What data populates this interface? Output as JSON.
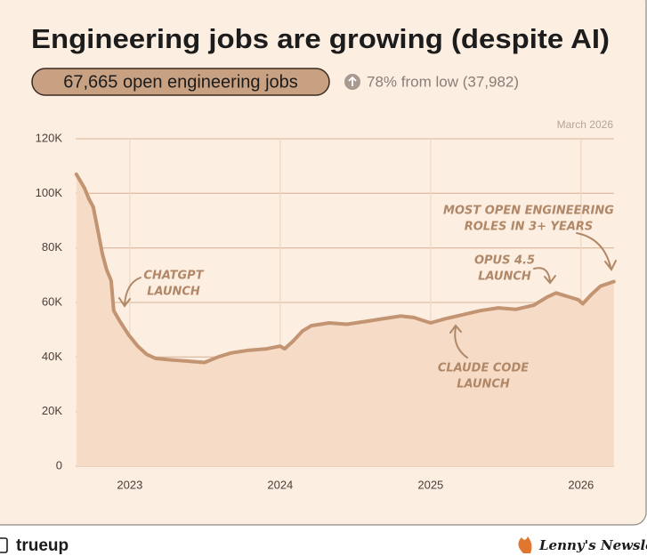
{
  "chart_data": {
    "type": "line",
    "title": "Engineering jobs are growing (despite AI)",
    "badge": "67,665 open engineering jobs",
    "change": "78% from low (37,982)",
    "date_label": "March 2026",
    "x": [
      2022.645,
      2022.698,
      2022.728,
      2022.757,
      2022.787,
      2022.817,
      2022.846,
      2022.876,
      2022.893,
      2022.935,
      2022.994,
      2023.053,
      2023.112,
      2023.172,
      2023.26,
      2023.379,
      2023.497,
      2023.586,
      2023.675,
      2023.793,
      2023.911,
      2024.0,
      2024.03,
      2024.089,
      2024.148,
      2024.207,
      2024.325,
      2024.444,
      2024.562,
      2024.68,
      2024.799,
      2024.888,
      2025.0,
      2025.095,
      2025.213,
      2025.331,
      2025.45,
      2025.568,
      2025.686,
      2025.775,
      2025.834,
      2025.923,
      2025.982,
      2026.012,
      2026.071,
      2026.13,
      2026.219
    ],
    "series": [
      {
        "color": "#c29472",
        "values": [
          107000,
          102000,
          98000,
          95000,
          86700,
          78000,
          72000,
          68000,
          57000,
          53000,
          48000,
          44000,
          41000,
          39500,
          39000,
          38500,
          37982,
          40000,
          41500,
          42500,
          43000,
          44000,
          43000,
          46000,
          49500,
          51500,
          52500,
          52000,
          53000,
          54000,
          55000,
          54500,
          52500,
          54000,
          55500,
          57000,
          58000,
          57500,
          59000,
          62000,
          63500,
          62000,
          61000,
          59500,
          63000,
          66000,
          67665
        ]
      }
    ],
    "xlim": [
      2022.64,
      2026.22
    ],
    "xticks": [
      2023,
      2024,
      2025,
      2026
    ],
    "ylim": [
      0,
      120000
    ],
    "yticks": [
      0,
      {
        "value": 20000,
        "label": "20K"
      },
      {
        "value": 40000,
        "label": "40K"
      },
      {
        "value": 60000,
        "label": "60K"
      },
      {
        "value": 80000,
        "label": "80K"
      },
      {
        "value": 100000,
        "label": "100K"
      },
      {
        "value": 120000,
        "label": "120K"
      }
    ],
    "grid": true,
    "annotations": [
      {
        "lines": [
          "CHATGPT",
          "LAUNCH"
        ]
      },
      {
        "lines": [
          "MOST OPEN ENGINEERING",
          "ROLES IN 3+ YEARS"
        ]
      },
      {
        "lines": [
          "OPUS 4.5",
          "LAUNCH"
        ]
      },
      {
        "lines": [
          "CLAUDE CODE",
          "LAUNCH"
        ]
      }
    ]
  },
  "footer": {
    "brand": "trueup",
    "newsletter": "Lenny's Newsletter"
  }
}
